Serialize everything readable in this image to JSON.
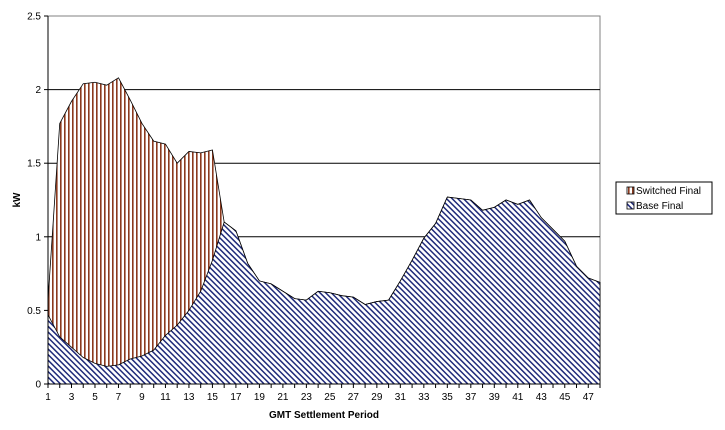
{
  "chart_data": {
    "type": "area",
    "xlabel": "GMT Settlement Period",
    "ylabel": "kW",
    "ylim": [
      0,
      2.5
    ],
    "yticks": [
      0,
      0.5,
      1,
      1.5,
      2,
      2.5
    ],
    "ytick_labels": [
      "0",
      "0.5",
      "1",
      "1.5",
      "2",
      "2.5"
    ],
    "x": [
      1,
      2,
      3,
      4,
      5,
      6,
      7,
      8,
      9,
      10,
      11,
      12,
      13,
      14,
      15,
      16,
      17,
      18,
      19,
      20,
      21,
      22,
      23,
      24,
      25,
      26,
      27,
      28,
      29,
      30,
      31,
      32,
      33,
      34,
      35,
      36,
      37,
      38,
      39,
      40,
      41,
      42,
      43,
      44,
      45,
      46,
      47,
      48
    ],
    "xtick_labels": [
      "1",
      "3",
      "5",
      "7",
      "9",
      "11",
      "13",
      "15",
      "17",
      "19",
      "21",
      "23",
      "25",
      "27",
      "29",
      "31",
      "33",
      "35",
      "37",
      "39",
      "41",
      "43",
      "45",
      "47"
    ],
    "grid": "horizontal",
    "legend_position": "right",
    "series": [
      {
        "name": "Switched Final",
        "color": "#8b3a1e",
        "pattern": "vertical-stripes",
        "values": [
          0.57,
          1.77,
          1.92,
          2.04,
          2.05,
          2.03,
          2.08,
          1.93,
          1.77,
          1.65,
          1.63,
          1.5,
          1.58,
          1.57,
          1.59,
          1.1,
          1.04,
          0.82,
          0.7,
          0.68,
          0.63,
          0.58,
          0.57,
          0.63,
          0.62,
          0.6,
          0.59,
          0.54,
          0.56,
          0.57,
          0.7,
          0.84,
          0.99,
          1.09,
          1.27,
          1.26,
          1.25,
          1.18,
          1.2,
          1.25,
          1.22,
          1.25,
          1.13,
          1.05,
          0.97,
          0.8,
          0.72,
          0.69
        ]
      },
      {
        "name": "Base Final",
        "color": "#1f2a7a",
        "pattern": "diagonal-hatch",
        "values": [
          0.47,
          0.32,
          0.25,
          0.18,
          0.14,
          0.12,
          0.13,
          0.17,
          0.19,
          0.23,
          0.33,
          0.4,
          0.5,
          0.63,
          0.84,
          1.1,
          1.04,
          0.82,
          0.7,
          0.68,
          0.63,
          0.58,
          0.57,
          0.63,
          0.62,
          0.6,
          0.59,
          0.54,
          0.56,
          0.57,
          0.7,
          0.84,
          0.99,
          1.09,
          1.27,
          1.26,
          1.25,
          1.18,
          1.2,
          1.25,
          1.22,
          1.25,
          1.13,
          1.05,
          0.97,
          0.8,
          0.72,
          0.69
        ]
      }
    ]
  }
}
